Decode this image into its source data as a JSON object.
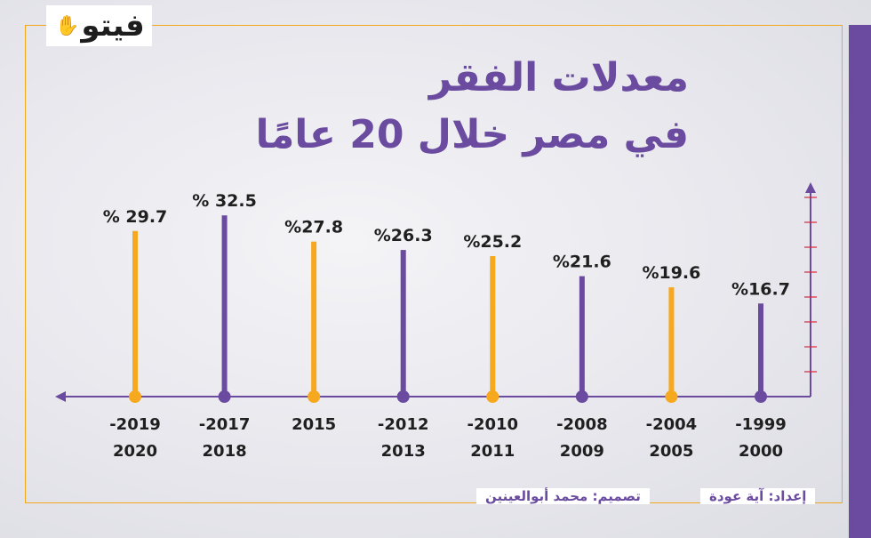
{
  "brand": {
    "logo_text": "فيتو"
  },
  "title": {
    "line1": "معدلات الفقر",
    "line2": "في مصر خلال 20 عامًا"
  },
  "credits": {
    "prepared_by": "إعداد: آية عودة",
    "designed_by": "تصميم: محمد أبوالعينين"
  },
  "colors": {
    "purple": "#6a4ba0",
    "orange": "#f6a81e",
    "frame": "#f2a81d"
  },
  "chart_data": {
    "type": "bar",
    "categories": [
      [
        "-1999",
        "2000"
      ],
      [
        "-2004",
        "2005"
      ],
      [
        "-2008",
        "2009"
      ],
      [
        "-2010",
        "2011"
      ],
      [
        "-2012",
        "2013"
      ],
      [
        "2015"
      ],
      [
        "-2017",
        "2018"
      ],
      [
        "-2019",
        "2020"
      ]
    ],
    "values": [
      16.7,
      19.6,
      21.6,
      25.2,
      26.3,
      27.8,
      32.5,
      29.7
    ],
    "value_labels": [
      "%16.7",
      "%19.6",
      "%21.6",
      "%25.2",
      "%26.3",
      "%27.8",
      "% 32.5",
      "% 29.7"
    ],
    "bar_colors": [
      "purple",
      "orange",
      "purple",
      "orange",
      "purple",
      "orange",
      "purple",
      "orange"
    ],
    "title": "",
    "xlabel": "",
    "ylabel": "",
    "ylim": [
      0,
      37
    ],
    "x_direction": "right-to-left",
    "grid": false
  }
}
